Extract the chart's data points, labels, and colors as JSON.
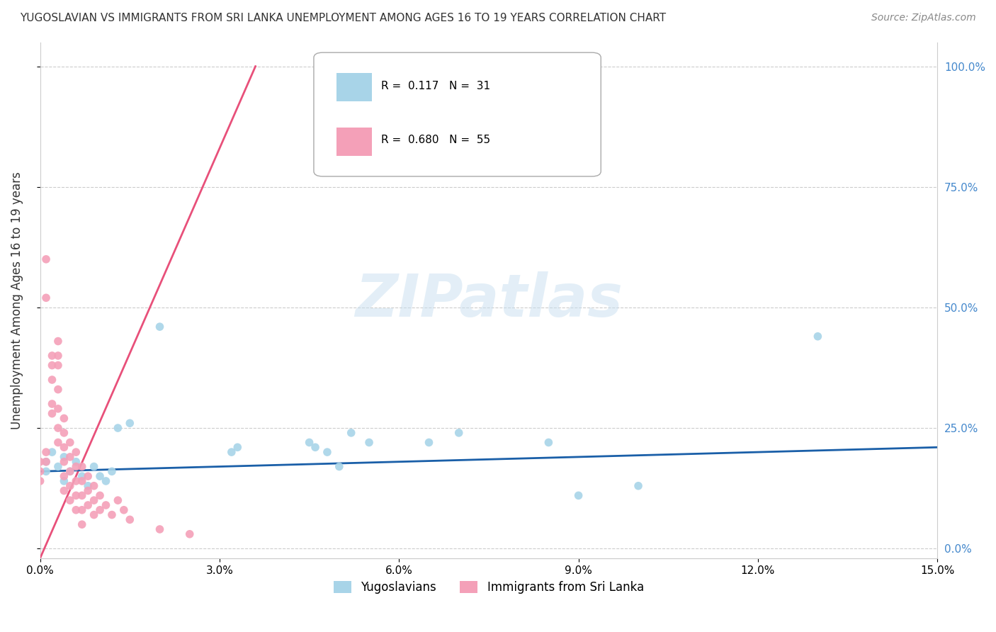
{
  "title": "YUGOSLAVIAN VS IMMIGRANTS FROM SRI LANKA UNEMPLOYMENT AMONG AGES 16 TO 19 YEARS CORRELATION CHART",
  "source": "Source: ZipAtlas.com",
  "ylabel_label": "Unemployment Among Ages 16 to 19 years",
  "legend_label1": "Yugoslavians",
  "legend_label2": "Immigrants from Sri Lanka",
  "R1": "0.117",
  "N1": "31",
  "R2": "0.680",
  "N2": "55",
  "color1": "#a8d4e8",
  "color2": "#f4a0b8",
  "line_color1": "#1a5fa8",
  "line_color2": "#e8507a",
  "right_axis_color": "#4488cc",
  "xlim": [
    0.0,
    0.15
  ],
  "ylim": [
    -0.02,
    1.05
  ],
  "yticks": [
    0.0,
    0.25,
    0.5,
    0.75,
    1.0
  ],
  "right_ytick_labels": [
    "0.0%",
    "25.0%",
    "50.0%",
    "75.0%",
    "100.0%"
  ],
  "xticks": [
    0.0,
    0.03,
    0.06,
    0.09,
    0.12,
    0.15
  ],
  "xtick_labels": [
    "0.0%",
    "3.0%",
    "6.0%",
    "9.0%",
    "12.0%",
    "15.0%"
  ],
  "yugoslavian_points": [
    [
      0.001,
      0.18
    ],
    [
      0.001,
      0.16
    ],
    [
      0.002,
      0.2
    ],
    [
      0.003,
      0.17
    ],
    [
      0.004,
      0.19
    ],
    [
      0.004,
      0.14
    ],
    [
      0.005,
      0.16
    ],
    [
      0.006,
      0.18
    ],
    [
      0.007,
      0.15
    ],
    [
      0.008,
      0.13
    ],
    [
      0.009,
      0.17
    ],
    [
      0.01,
      0.15
    ],
    [
      0.011,
      0.14
    ],
    [
      0.012,
      0.16
    ],
    [
      0.013,
      0.25
    ],
    [
      0.015,
      0.26
    ],
    [
      0.02,
      0.46
    ],
    [
      0.032,
      0.2
    ],
    [
      0.033,
      0.21
    ],
    [
      0.045,
      0.22
    ],
    [
      0.046,
      0.21
    ],
    [
      0.048,
      0.2
    ],
    [
      0.05,
      0.17
    ],
    [
      0.052,
      0.24
    ],
    [
      0.055,
      0.22
    ],
    [
      0.065,
      0.22
    ],
    [
      0.07,
      0.24
    ],
    [
      0.085,
      0.22
    ],
    [
      0.09,
      0.11
    ],
    [
      0.1,
      0.13
    ],
    [
      0.13,
      0.44
    ]
  ],
  "srilanka_points": [
    [
      0.0,
      0.18
    ],
    [
      0.0,
      0.16
    ],
    [
      0.0,
      0.14
    ],
    [
      0.001,
      0.2
    ],
    [
      0.001,
      0.18
    ],
    [
      0.001,
      0.6
    ],
    [
      0.001,
      0.52
    ],
    [
      0.002,
      0.4
    ],
    [
      0.002,
      0.38
    ],
    [
      0.002,
      0.35
    ],
    [
      0.002,
      0.3
    ],
    [
      0.002,
      0.28
    ],
    [
      0.003,
      0.43
    ],
    [
      0.003,
      0.4
    ],
    [
      0.003,
      0.38
    ],
    [
      0.003,
      0.33
    ],
    [
      0.003,
      0.29
    ],
    [
      0.003,
      0.25
    ],
    [
      0.003,
      0.22
    ],
    [
      0.004,
      0.27
    ],
    [
      0.004,
      0.24
    ],
    [
      0.004,
      0.21
    ],
    [
      0.004,
      0.18
    ],
    [
      0.004,
      0.15
    ],
    [
      0.004,
      0.12
    ],
    [
      0.005,
      0.22
    ],
    [
      0.005,
      0.19
    ],
    [
      0.005,
      0.16
    ],
    [
      0.005,
      0.13
    ],
    [
      0.005,
      0.1
    ],
    [
      0.006,
      0.2
    ],
    [
      0.006,
      0.17
    ],
    [
      0.006,
      0.14
    ],
    [
      0.006,
      0.11
    ],
    [
      0.006,
      0.08
    ],
    [
      0.007,
      0.17
    ],
    [
      0.007,
      0.14
    ],
    [
      0.007,
      0.11
    ],
    [
      0.007,
      0.08
    ],
    [
      0.007,
      0.05
    ],
    [
      0.008,
      0.15
    ],
    [
      0.008,
      0.12
    ],
    [
      0.008,
      0.09
    ],
    [
      0.009,
      0.13
    ],
    [
      0.009,
      0.1
    ],
    [
      0.009,
      0.07
    ],
    [
      0.01,
      0.11
    ],
    [
      0.01,
      0.08
    ],
    [
      0.011,
      0.09
    ],
    [
      0.012,
      0.07
    ],
    [
      0.013,
      0.1
    ],
    [
      0.014,
      0.08
    ],
    [
      0.015,
      0.06
    ],
    [
      0.02,
      0.04
    ],
    [
      0.025,
      0.03
    ]
  ],
  "pink_line": [
    [
      0.0,
      -0.02
    ],
    [
      0.036,
      1.0
    ]
  ],
  "blue_line": [
    [
      0.0,
      0.16
    ],
    [
      0.15,
      0.21
    ]
  ]
}
